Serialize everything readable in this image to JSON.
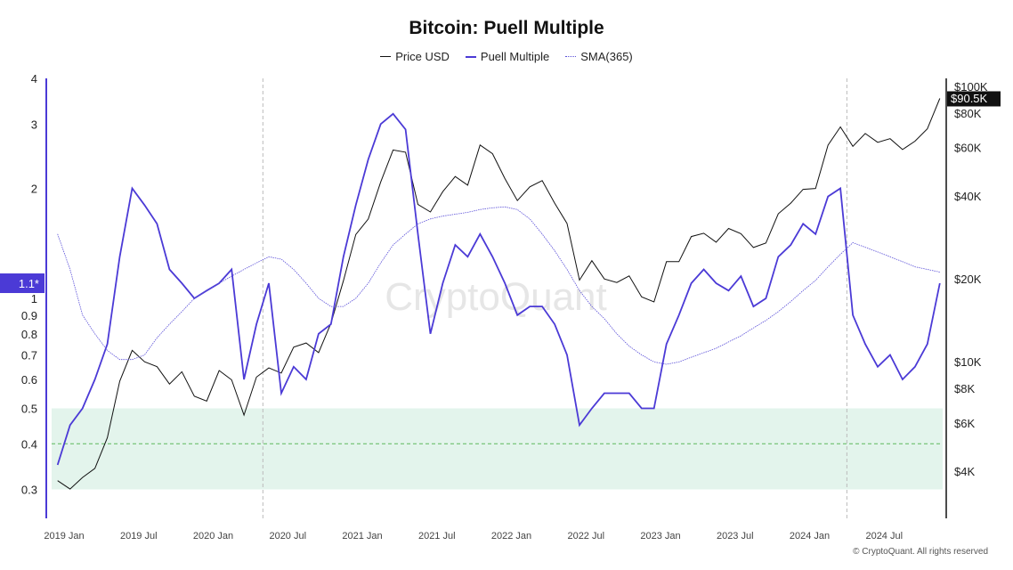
{
  "chart_data": {
    "type": "line",
    "title": "Bitcoin: Puell Multiple",
    "legend": {
      "placement": "top",
      "entries": [
        "Price USD",
        "Puell Multiple",
        "SMA(365)"
      ]
    },
    "x_ticks": [
      "2019 Jan",
      "2019 Jul",
      "2020 Jan",
      "2020 Jul",
      "2021 Jan",
      "2021 Jul",
      "2022 Jan",
      "2022 Jul",
      "2023 Jan",
      "2023 Jul",
      "2024 Jan",
      "2024 Jul"
    ],
    "x_tick_dates": [
      "2019-01",
      "2019-07",
      "2020-01",
      "2020-07",
      "2021-01",
      "2021-07",
      "2022-01",
      "2022-07",
      "2023-01",
      "2023-07",
      "2024-01",
      "2024-07"
    ],
    "left_axis": {
      "scale": "log",
      "range": [
        0.25,
        4
      ],
      "ticks": [
        4,
        3,
        2,
        1,
        0.9,
        0.8,
        0.7,
        0.6,
        0.5,
        0.4,
        0.3
      ],
      "tick_labels": [
        "4",
        "3",
        "2",
        "1",
        "0.9",
        "0.8",
        "0.7",
        "0.6",
        "0.5",
        "0.4",
        "0.3"
      ],
      "current_label": "1.1*",
      "current_value": 1.1
    },
    "right_axis": {
      "scale": "log",
      "range": [
        2700,
        107000
      ],
      "ticks": [
        100000,
        80000,
        60000,
        40000,
        20000,
        10000,
        8000,
        6000,
        4000
      ],
      "tick_labels": [
        "$100K",
        "$80K",
        "$60K",
        "$40K",
        "$20K",
        "$10K",
        "$8K",
        "$6K",
        "$4K"
      ],
      "current_label": "$90.5K",
      "current_value": 90500
    },
    "grid": false,
    "shaded_band": {
      "from": 0.3,
      "to": 0.5,
      "color": "#e3f4ec"
    },
    "reference_line": {
      "value": 0.4,
      "color": "#5cb85c"
    },
    "vertical_markers": [
      "2020-05",
      "2024-04"
    ],
    "dates": [
      "2018-12",
      "2019-01",
      "2019-02",
      "2019-03",
      "2019-04",
      "2019-05",
      "2019-06",
      "2019-07",
      "2019-08",
      "2019-09",
      "2019-10",
      "2019-11",
      "2019-12",
      "2020-01",
      "2020-02",
      "2020-03",
      "2020-04",
      "2020-05",
      "2020-06",
      "2020-07",
      "2020-08",
      "2020-09",
      "2020-10",
      "2020-11",
      "2020-12",
      "2021-01",
      "2021-02",
      "2021-03",
      "2021-04",
      "2021-05",
      "2021-06",
      "2021-07",
      "2021-08",
      "2021-09",
      "2021-10",
      "2021-11",
      "2021-12",
      "2022-01",
      "2022-02",
      "2022-03",
      "2022-04",
      "2022-05",
      "2022-06",
      "2022-07",
      "2022-08",
      "2022-09",
      "2022-10",
      "2022-11",
      "2022-12",
      "2023-01",
      "2023-02",
      "2023-03",
      "2023-04",
      "2023-05",
      "2023-06",
      "2023-07",
      "2023-08",
      "2023-09",
      "2023-10",
      "2023-11",
      "2023-12",
      "2024-01",
      "2024-02",
      "2024-03",
      "2024-04",
      "2024-05",
      "2024-06",
      "2024-07",
      "2024-08",
      "2024-09",
      "2024-10",
      "2024-11"
    ],
    "series": [
      {
        "name": "Price USD",
        "axis": "right",
        "color": "#111111",
        "values": [
          3700,
          3450,
          3800,
          4100,
          5300,
          8500,
          11000,
          10000,
          9600,
          8300,
          9200,
          7500,
          7200,
          9300,
          8600,
          6400,
          8800,
          9500,
          9100,
          11300,
          11700,
          10800,
          13800,
          19700,
          29000,
          33000,
          45000,
          58800,
          57700,
          37300,
          35000,
          41500,
          47100,
          43800,
          61300,
          57000,
          46300,
          38500,
          43200,
          45500,
          37700,
          31800,
          19800,
          23300,
          20000,
          19400,
          20500,
          17200,
          16500,
          23100,
          23100,
          28500,
          29300,
          27200,
          30500,
          29200,
          26000,
          27000,
          34500,
          37700,
          42300,
          42600,
          61200,
          71300,
          60600,
          67500,
          62700,
          64600,
          59000,
          63300,
          70200,
          90500
        ]
      },
      {
        "name": "Puell Multiple",
        "axis": "left",
        "color": "#4b3ad6",
        "values": [
          0.35,
          0.45,
          0.5,
          0.6,
          0.75,
          1.3,
          2.0,
          1.8,
          1.6,
          1.2,
          1.1,
          1.0,
          1.05,
          1.1,
          1.2,
          0.6,
          0.85,
          1.1,
          0.55,
          0.65,
          0.6,
          0.8,
          0.85,
          1.3,
          1.8,
          2.4,
          3.0,
          3.2,
          2.9,
          1.5,
          0.8,
          1.1,
          1.4,
          1.3,
          1.5,
          1.3,
          1.1,
          0.9,
          0.95,
          0.95,
          0.85,
          0.7,
          0.45,
          0.5,
          0.55,
          0.55,
          0.55,
          0.5,
          0.5,
          0.75,
          0.9,
          1.1,
          1.2,
          1.1,
          1.05,
          1.15,
          0.95,
          1.0,
          1.3,
          1.4,
          1.6,
          1.5,
          1.9,
          2.0,
          0.9,
          0.75,
          0.65,
          0.7,
          0.6,
          0.65,
          0.75,
          1.1
        ]
      },
      {
        "name": "SMA(365)",
        "axis": "left",
        "color": "#5a4fd8",
        "values": [
          1.5,
          1.2,
          0.9,
          0.8,
          0.72,
          0.68,
          0.68,
          0.7,
          0.78,
          0.85,
          0.92,
          1.0,
          1.05,
          1.1,
          1.15,
          1.2,
          1.25,
          1.3,
          1.28,
          1.2,
          1.1,
          1.0,
          0.95,
          0.95,
          1.0,
          1.1,
          1.25,
          1.4,
          1.5,
          1.6,
          1.65,
          1.68,
          1.7,
          1.72,
          1.75,
          1.77,
          1.78,
          1.75,
          1.65,
          1.5,
          1.35,
          1.2,
          1.05,
          0.95,
          0.88,
          0.8,
          0.74,
          0.7,
          0.67,
          0.66,
          0.67,
          0.69,
          0.71,
          0.73,
          0.76,
          0.79,
          0.83,
          0.87,
          0.92,
          0.98,
          1.05,
          1.12,
          1.22,
          1.32,
          1.42,
          1.38,
          1.34,
          1.3,
          1.26,
          1.22,
          1.2,
          1.18
        ]
      }
    ],
    "watermark": "CryptoQuant"
  },
  "footer": "© CryptoQuant. All rights reserved"
}
